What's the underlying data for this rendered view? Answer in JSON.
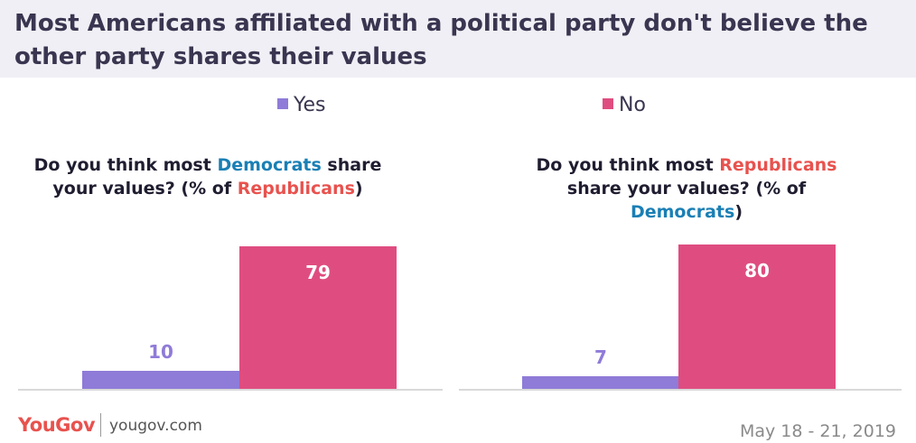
{
  "title": "Most Americans affiliated with a political party don't believe the other party shares their values",
  "legend": [
    {
      "label": "Yes",
      "color": "#8f7bd8"
    },
    {
      "label": "No",
      "color": "#df4d80"
    }
  ],
  "panels": [
    {
      "question_parts": [
        {
          "text": "Do you think most ",
          "style": "plain"
        },
        {
          "text": "Democrats",
          "style": "dem"
        },
        {
          "text": " share your values? (% of ",
          "style": "plain"
        },
        {
          "text": "Republicans",
          "style": "rep"
        },
        {
          "text": ")",
          "style": "plain"
        }
      ]
    },
    {
      "question_parts": [
        {
          "text": "Do you think most ",
          "style": "plain"
        },
        {
          "text": "Republicans",
          "style": "rep"
        },
        {
          "text": " share your values? (% of ",
          "style": "plain"
        },
        {
          "text": "Democrats",
          "style": "dem"
        },
        {
          "text": ")",
          "style": "plain"
        }
      ]
    }
  ],
  "chart_data": [
    {
      "type": "bar",
      "title": "Do you think most Democrats share your values? (% of Republicans)",
      "categories": [
        "Yes",
        "No"
      ],
      "values": [
        10,
        79
      ],
      "colors": [
        "#8f7bd8",
        "#df4d80"
      ],
      "ylim": [
        0,
        80
      ]
    },
    {
      "type": "bar",
      "title": "Do you think most Republicans share your values? (% of Democrats)",
      "categories": [
        "Yes",
        "No"
      ],
      "values": [
        7,
        80
      ],
      "colors": [
        "#8f7bd8",
        "#df4d80"
      ],
      "ylim": [
        0,
        80
      ]
    }
  ],
  "footer": {
    "logo": "YouGov",
    "url": "yougov.com",
    "date": "May 18 - 21, 2019"
  }
}
